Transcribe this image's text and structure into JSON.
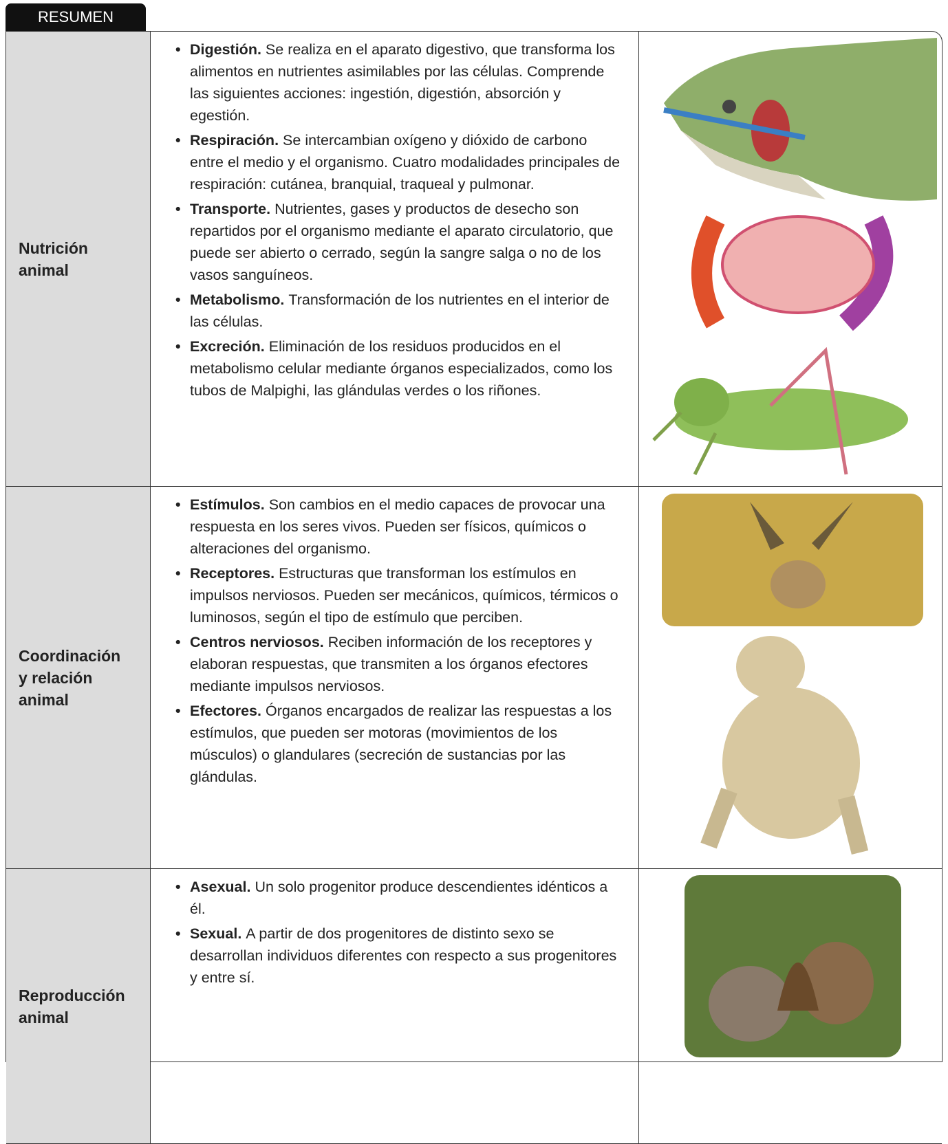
{
  "header": {
    "title": "RESUMEN"
  },
  "rows": [
    {
      "label": [
        "Nutrición",
        "animal"
      ],
      "items": [
        {
          "term": "Digestión.",
          "text": "Se realiza en el aparato digestivo, que transforma los alimentos en nutrientes asimilables por las células. Comprende las siguientes acciones: ingestión, digestión, absorción y egestión."
        },
        {
          "term": "Respiración.",
          "text": "Se intercambian oxígeno y dióxido de carbono entre el medio y el organismo. Cuatro modalidades principales de respiración: cutánea, branquial, traqueal y pulmonar."
        },
        {
          "term": "Transporte.",
          "text": "Nutrientes, gases y productos de desecho son repartidos por el organismo mediante el aparato circulatorio, que puede ser abierto o cerrado, según la sangre salga o no de los vasos sanguíneos."
        },
        {
          "term": "Metabolismo.",
          "text": "Transformación de los nutrientes en el interior de las células."
        },
        {
          "term": "Excreción.",
          "text": "Eliminación de los residuos producidos en el metabolismo celular mediante órganos especializados, como los tubos de Malpighi, las glándulas verdes o los riñones."
        }
      ]
    },
    {
      "label": [
        "Coordinación",
        "y relación",
        "animal"
      ],
      "items": [
        {
          "term": "Estímulos.",
          "text": "Son cambios en el medio capaces de provocar una respuesta en los seres vivos. Pueden ser físicos, químicos o alteraciones del organismo."
        },
        {
          "term": "Receptores.",
          "text": "Estructuras que transforman los estímulos en impulsos nerviosos. Pueden ser mecánicos, químicos, térmicos o luminosos, según el tipo de estímulo que perciben."
        },
        {
          "term": "Centros nerviosos.",
          "text": "Reciben información de los receptores y elaboran respuestas, que transmiten a los órganos efectores mediante impulsos nerviosos."
        },
        {
          "term": "Efectores.",
          "text": "Órganos encargados de realizar las respuestas a los estímulos, que pueden ser motoras (movimientos de los músculos) o glandulares (secreción de sustancias por las glándulas."
        }
      ]
    },
    {
      "label": [
        "Reproducción",
        "animal"
      ],
      "items": [
        {
          "term": "Asexual.",
          "text": "Un solo progenitor produce descendientes idénticos a él."
        },
        {
          "term": "Sexual.",
          "text": "A partir de dos progenitores de distinto sexo se desarrollan individuos diferentes con respecto a sus progenitores y entre sí."
        }
      ]
    }
  ]
}
